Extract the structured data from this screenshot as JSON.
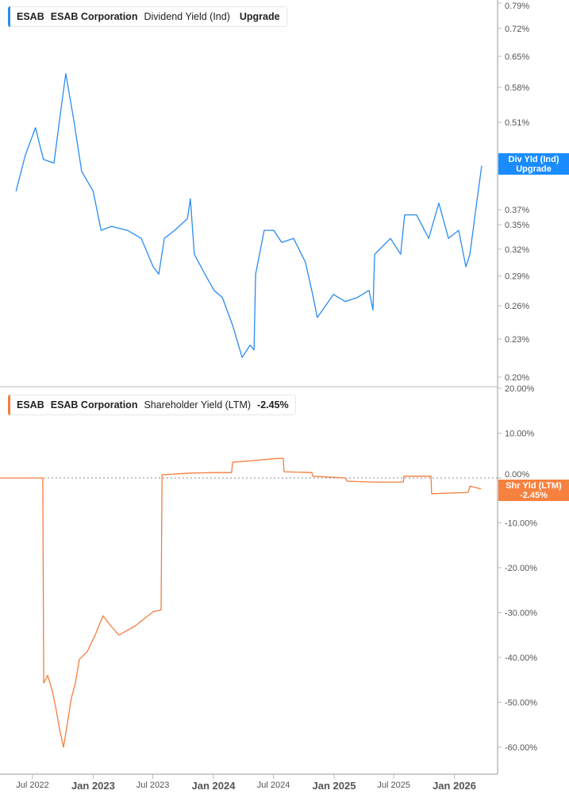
{
  "colors": {
    "dividend": "#2a8bf2",
    "shareholder": "#f47d3e",
    "axis": "#bbbbbb",
    "text": "#555555"
  },
  "chart_data": [
    {
      "type": "line",
      "legend": {
        "ticker": "ESAB",
        "company": "ESAB Corporation",
        "metric": "Dividend Yield (Ind)",
        "value": "Upgrade"
      },
      "end_label": {
        "line1": "Div Yld (Ind)",
        "line2": "Upgrade"
      },
      "y_scale": "log",
      "ylim": [
        0.2,
        0.79
      ],
      "y_ticks": [
        "0.79%",
        "0.72%",
        "0.65%",
        "0.58%",
        "0.51%",
        "0.37%",
        "0.35%",
        "0.32%",
        "0.29%",
        "0.26%",
        "0.23%",
        "0.20%"
      ],
      "y_tick_values": [
        0.79,
        0.72,
        0.65,
        0.58,
        0.51,
        0.37,
        0.35,
        0.32,
        0.29,
        0.26,
        0.23,
        0.2
      ],
      "series": [
        {
          "points": [
            [
              "2022-05-12",
              0.396
            ],
            [
              "2022-06-09",
              0.452
            ],
            [
              "2022-07-10",
              0.5
            ],
            [
              "2022-08-03",
              0.445
            ],
            [
              "2022-09-04",
              0.439
            ],
            [
              "2022-09-21",
              0.515
            ],
            [
              "2022-10-10",
              0.61
            ],
            [
              "2022-11-03",
              0.515
            ],
            [
              "2022-11-27",
              0.426
            ],
            [
              "2023-01-01",
              0.396
            ],
            [
              "2023-01-25",
              0.343
            ],
            [
              "2023-02-25",
              0.348
            ],
            [
              "2023-04-15",
              0.343
            ],
            [
              "2023-05-27",
              0.333
            ],
            [
              "2023-07-02",
              0.3
            ],
            [
              "2023-07-19",
              0.292
            ],
            [
              "2023-08-05",
              0.333
            ],
            [
              "2023-09-05",
              0.343
            ],
            [
              "2023-10-14",
              0.358
            ],
            [
              "2023-10-23",
              0.385
            ],
            [
              "2023-11-04",
              0.314
            ],
            [
              "2023-12-06",
              0.292
            ],
            [
              "2024-01-03",
              0.275
            ],
            [
              "2024-01-28",
              0.268
            ],
            [
              "2024-02-28",
              0.242
            ],
            [
              "2024-03-28",
              0.215
            ],
            [
              "2024-04-21",
              0.225
            ],
            [
              "2024-05-03",
              0.221
            ],
            [
              "2024-05-08",
              0.292
            ],
            [
              "2024-06-03",
              0.343
            ],
            [
              "2024-07-02",
              0.343
            ],
            [
              "2024-07-26",
              0.328
            ],
            [
              "2024-08-31",
              0.333
            ],
            [
              "2024-10-06",
              0.305
            ],
            [
              "2024-10-30",
              0.268
            ],
            [
              "2024-11-11",
              0.249
            ],
            [
              "2024-12-30",
              0.271
            ],
            [
              "2025-02-04",
              0.264
            ],
            [
              "2025-03-12",
              0.268
            ],
            [
              "2025-04-17",
              0.275
            ],
            [
              "2025-04-29",
              0.256
            ],
            [
              "2025-05-04",
              0.314
            ],
            [
              "2025-06-21",
              0.333
            ],
            [
              "2025-07-22",
              0.314
            ],
            [
              "2025-08-03",
              0.363
            ],
            [
              "2025-09-08",
              0.363
            ],
            [
              "2025-10-15",
              0.333
            ],
            [
              "2025-11-15",
              0.379
            ],
            [
              "2025-12-14",
              0.333
            ],
            [
              "2026-01-14",
              0.343
            ],
            [
              "2026-02-05",
              0.3
            ],
            [
              "2026-02-17",
              0.314
            ],
            [
              "2026-03-08",
              0.374
            ],
            [
              "2026-03-25",
              0.435
            ]
          ]
        }
      ]
    },
    {
      "type": "line",
      "legend": {
        "ticker": "ESAB",
        "company": "ESAB Corporation",
        "metric": "Shareholder Yield (LTM)",
        "value": "-2.45%"
      },
      "end_label": {
        "line1": "Shr Yld (LTM)",
        "line2": "-2.45%"
      },
      "y_scale": "linear",
      "ylim": [
        -60,
        20
      ],
      "y_ticks": [
        "20.00%",
        "10.00%",
        "0.00%",
        "-10.00%",
        "-20.00%",
        "-30.00%",
        "-40.00%",
        "-50.00%",
        "-60.00%"
      ],
      "y_tick_values": [
        20,
        10,
        0,
        -10,
        -20,
        -30,
        -40,
        -50,
        -60
      ],
      "reference_line": 0,
      "series": [
        {
          "points": [
            [
              "2022-03-24",
              0
            ],
            [
              "2022-08-01",
              0
            ],
            [
              "2022-08-04",
              -45.7
            ],
            [
              "2022-08-16",
              -44
            ],
            [
              "2022-08-30",
              -47.5
            ],
            [
              "2022-09-09",
              -51
            ],
            [
              "2022-09-21",
              -56
            ],
            [
              "2022-10-03",
              -60
            ],
            [
              "2022-10-15",
              -54.6
            ],
            [
              "2022-10-27",
              -49
            ],
            [
              "2022-11-08",
              -45.7
            ],
            [
              "2022-11-20",
              -40.4
            ],
            [
              "2022-12-14",
              -38.7
            ],
            [
              "2023-01-07",
              -35
            ],
            [
              "2023-01-31",
              -30.7
            ],
            [
              "2023-02-24",
              -33
            ],
            [
              "2023-03-20",
              -35
            ],
            [
              "2023-04-14",
              -34
            ],
            [
              "2023-05-08",
              -33
            ],
            [
              "2023-06-01",
              -31.6
            ],
            [
              "2023-07-02",
              -29.8
            ],
            [
              "2023-07-26",
              -29.4
            ],
            [
              "2023-07-29",
              0.7
            ],
            [
              "2023-10-23",
              1.1
            ],
            [
              "2024-01-03",
              1.2
            ],
            [
              "2024-02-25",
              1.2
            ],
            [
              "2024-02-28",
              3.5
            ],
            [
              "2024-05-03",
              3.9
            ],
            [
              "2024-07-02",
              4.3
            ],
            [
              "2024-07-31",
              4.4
            ],
            [
              "2024-08-02",
              1.4
            ],
            [
              "2024-10-26",
              1.2
            ],
            [
              "2024-10-28",
              0.4
            ],
            [
              "2025-02-04",
              0
            ],
            [
              "2025-02-09",
              -0.7
            ],
            [
              "2025-04-29",
              -0.9
            ],
            [
              "2025-07-30",
              -0.9
            ],
            [
              "2025-08-01",
              0.4
            ],
            [
              "2025-10-22",
              0.4
            ],
            [
              "2025-10-24",
              -3.5
            ],
            [
              "2026-02-12",
              -3.2
            ],
            [
              "2026-02-17",
              -1.8
            ],
            [
              "2026-03-23",
              -2.45
            ]
          ]
        }
      ]
    }
  ],
  "x_axis": {
    "ticks": [
      {
        "date": "2022-07-01",
        "label": "Jul 2022",
        "major": false
      },
      {
        "date": "2023-01-01",
        "label": "Jan 2023",
        "major": true
      },
      {
        "date": "2023-07-01",
        "label": "Jul 2023",
        "major": false
      },
      {
        "date": "2024-01-01",
        "label": "Jan 2024",
        "major": true
      },
      {
        "date": "2024-07-01",
        "label": "Jul 2024",
        "major": false
      },
      {
        "date": "2025-01-01",
        "label": "Jan 2025",
        "major": true
      },
      {
        "date": "2025-07-01",
        "label": "Jul 2025",
        "major": false
      },
      {
        "date": "2026-01-01",
        "label": "Jan 2026",
        "major": true
      }
    ]
  }
}
